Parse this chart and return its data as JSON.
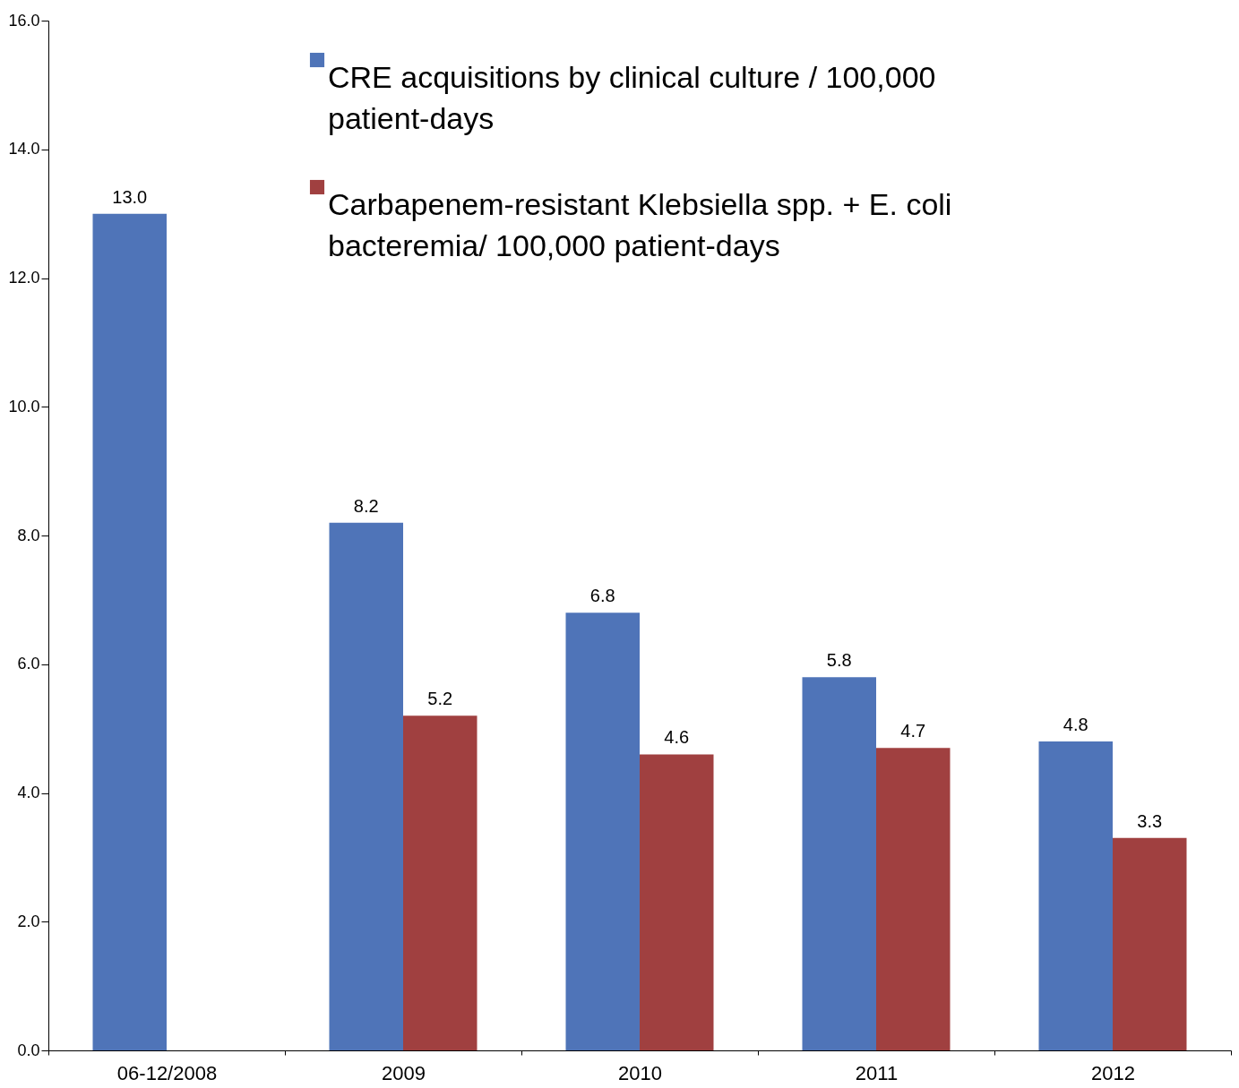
{
  "chart_data": {
    "type": "bar",
    "categories": [
      "06-12/2008",
      "2009",
      "2010",
      "2011",
      "2012"
    ],
    "series": [
      {
        "name": "CRE acquisitions by clinical culture / 100,000 patient-days",
        "color": "#4f74b8",
        "values": [
          13.0,
          8.2,
          6.8,
          5.8,
          4.8
        ],
        "value_labels": [
          "13.0",
          "8.2",
          "6.8",
          "5.8",
          "4.8"
        ]
      },
      {
        "name": "Carbapenem-resistant Klebsiella spp. + E. coli bacteremia/ 100,000 patient-days",
        "color": "#a04040",
        "values": [
          null,
          5.2,
          4.6,
          4.7,
          3.3
        ],
        "value_labels": [
          null,
          "5.2",
          "4.6",
          "4.7",
          "3.3"
        ]
      }
    ],
    "ylim": [
      0,
      16
    ],
    "yticks": [
      {
        "value": 0,
        "label": "0.0"
      },
      {
        "value": 2,
        "label": "2.0"
      },
      {
        "value": 4,
        "label": "4.0"
      },
      {
        "value": 6,
        "label": "6.0"
      },
      {
        "value": 8,
        "label": "8.0"
      },
      {
        "value": 10,
        "label": "10.0"
      },
      {
        "value": 12,
        "label": "12.0"
      },
      {
        "value": 14,
        "label": "14.0"
      },
      {
        "value": 16,
        "label": "16.0"
      }
    ],
    "grid": false,
    "legend": "top"
  }
}
